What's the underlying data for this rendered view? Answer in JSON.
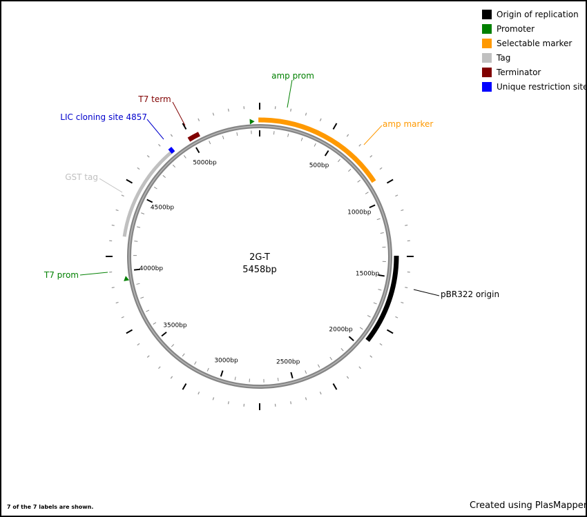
{
  "plasmid": {
    "name": "2G-T",
    "length_label": "5458bp",
    "length": 5458
  },
  "features": [
    {
      "name": "amp prom",
      "type": "promoter",
      "start": 5408,
      "end": 5420,
      "ring": "arrow",
      "color": "#008000"
    },
    {
      "name": "amp marker",
      "type": "selectable_marker",
      "start": 5450,
      "end": 860,
      "ring": "outer",
      "color": "#FF9900"
    },
    {
      "name": "pBR322 origin",
      "type": "origin",
      "start": 1360,
      "end": 1940,
      "ring": "outer",
      "color": "#000000"
    },
    {
      "name": "T7 prom",
      "type": "promoter",
      "start": 3950,
      "end": 3990,
      "ring": "arrow",
      "color": "#008000"
    },
    {
      "name": "GST tag",
      "type": "tag",
      "start": 4220,
      "end": 4870,
      "ring": "inner",
      "color": "#C0C0C0"
    },
    {
      "name": "T7 term",
      "type": "terminator",
      "start": 4985,
      "end": 5060,
      "ring": "outer",
      "color": "#800000"
    },
    {
      "name": "LIC cloning site 4857",
      "type": "restriction_site",
      "start": 4857,
      "end": 4857,
      "ring": "marker",
      "color": "#0000FF"
    }
  ],
  "labels": [
    {
      "text": "amp prom",
      "color": "#008000",
      "anchor": "middle"
    },
    {
      "text": "amp marker",
      "color": "#FF9900",
      "anchor": "start"
    },
    {
      "text": "pBR322 origin",
      "color": "#000000",
      "anchor": "start"
    },
    {
      "text": "T7 prom",
      "color": "#008000",
      "anchor": "end"
    },
    {
      "text": "GST tag",
      "color": "#C0C0C0",
      "anchor": "end"
    },
    {
      "text": "T7 term",
      "color": "#800000",
      "anchor": "middle"
    },
    {
      "text": "LIC cloning site 4857",
      "color": "#0000CC",
      "anchor": "end"
    }
  ],
  "tick_labels": [
    {
      "bp": 500,
      "text": "500bp"
    },
    {
      "bp": 1000,
      "text": "1000bp"
    },
    {
      "bp": 1500,
      "text": "1500bp"
    },
    {
      "bp": 2000,
      "text": "2000bp"
    },
    {
      "bp": 2500,
      "text": "2500bp"
    },
    {
      "bp": 3000,
      "text": "3000bp"
    },
    {
      "bp": 3500,
      "text": "3500bp"
    },
    {
      "bp": 4000,
      "text": "4000bp"
    },
    {
      "bp": 4500,
      "text": "4500bp"
    },
    {
      "bp": 5000,
      "text": "5000bp"
    }
  ],
  "legend": [
    {
      "label": "Origin of replication",
      "color": "#000000"
    },
    {
      "label": "Promoter",
      "color": "#008000"
    },
    {
      "label": "Selectable marker",
      "color": "#FF9900"
    },
    {
      "label": "Tag",
      "color": "#C0C0C0"
    },
    {
      "label": "Terminator",
      "color": "#800000"
    },
    {
      "label": "Unique restriction site",
      "color": "#0000FF"
    }
  ],
  "footnote": "7 of the 7 labels are shown.",
  "credit": "Created using PlasMapper"
}
